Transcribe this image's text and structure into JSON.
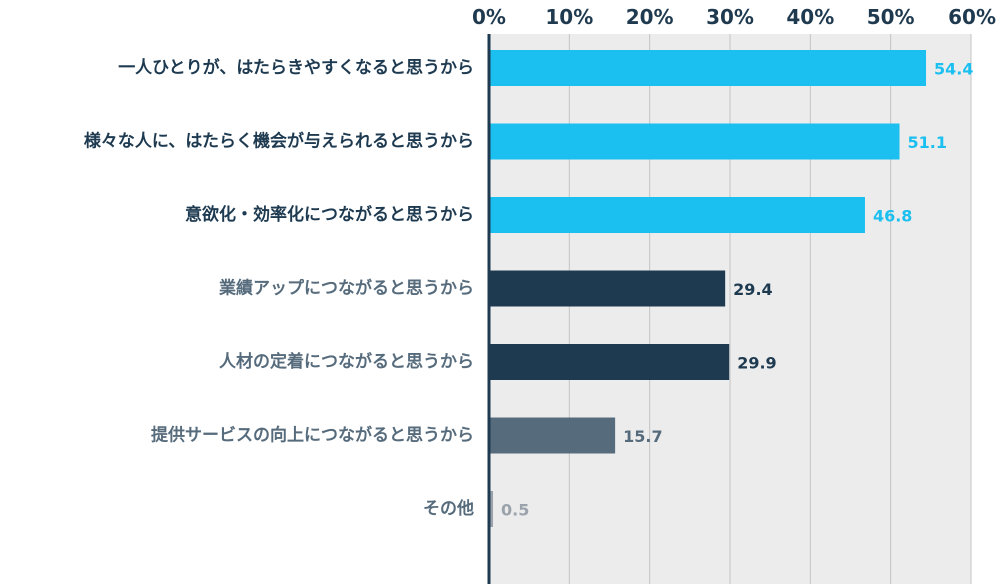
{
  "chart_data": {
    "type": "bar",
    "orientation": "horizontal",
    "categories": [
      "一人ひとりが、はたらきやすくなると思うから",
      "様々な人に、はたらく機会が与えられると思うから",
      "意欲化・効率化につながると思うから",
      "業績アップにつながると思うから",
      "人材の定着につながると思うから",
      "提供サービスの向上につながると思うから",
      "その他"
    ],
    "values": [
      54.4,
      51.1,
      46.8,
      29.4,
      29.9,
      15.7,
      0.5
    ],
    "value_labels": [
      "54.4",
      "51.1",
      "46.8",
      "29.4",
      "29.9",
      "15.7",
      "0.5"
    ],
    "bar_colors": [
      "#1bbff0",
      "#1bbff0",
      "#1bbff0",
      "#1e3a50",
      "#1e3a50",
      "#566b7c",
      "#9aa3ab"
    ],
    "value_label_colors": [
      "#1bbff0",
      "#1bbff0",
      "#1bbff0",
      "#1e3a50",
      "#1e3a50",
      "#566b7c",
      "#9aa3ab"
    ],
    "category_label_colors": [
      "#1e3a50",
      "#1e3a50",
      "#1e3a50",
      "#566b7c",
      "#566b7c",
      "#566b7c",
      "#566b7c"
    ],
    "xlim": [
      0,
      60
    ],
    "x_ticks": [
      0,
      10,
      20,
      30,
      40,
      50,
      60
    ],
    "x_tick_labels": [
      "0%",
      "10%",
      "20%",
      "30%",
      "40%",
      "50%",
      "60%"
    ],
    "tick_position": "top",
    "grid": true,
    "plot_background": "#ececec",
    "grid_color": "#c4c4c4",
    "axis_color": "#1e3a50"
  }
}
